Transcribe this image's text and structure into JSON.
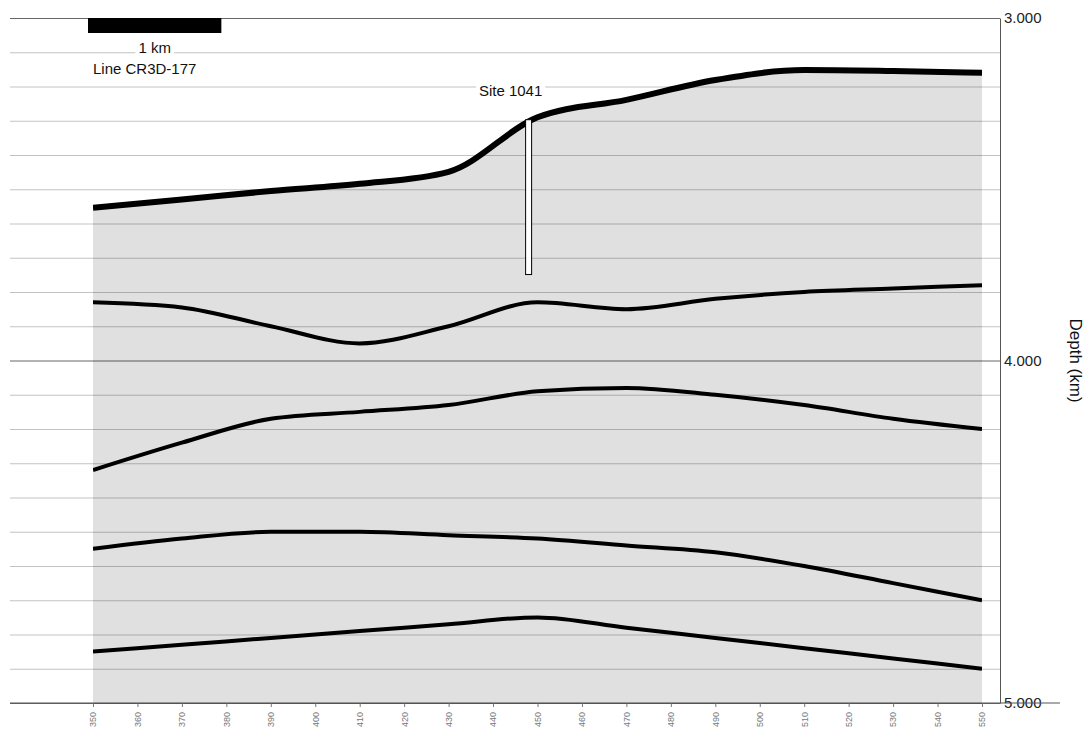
{
  "chart_data": {
    "type": "line",
    "title": "Line CR3D-177",
    "y_label": "Depth (km)",
    "scale_bar": {
      "label": "1 km",
      "length": 30
    },
    "annotations": [
      {
        "text": "Site 1041",
        "x": 448,
        "y": [
          3.297,
          3.749
        ]
      }
    ],
    "x": [
      350,
      370,
      390,
      410,
      430,
      450,
      470,
      490,
      510,
      530,
      550
    ],
    "series": [
      {
        "type": "area",
        "color": "#000000",
        "values": [
          3.554,
          3.53,
          3.505,
          3.484,
          3.449,
          3.29,
          3.239,
          3.181,
          3.152,
          3.155,
          3.16
        ]
      },
      {
        "type": "line",
        "color": "#000000",
        "values": [
          3.83,
          3.845,
          3.9,
          3.95,
          3.9,
          3.83,
          3.85,
          3.82,
          3.8,
          3.79,
          3.78
        ]
      },
      {
        "type": "line",
        "color": "#000000",
        "values": [
          4.32,
          4.24,
          4.17,
          4.15,
          4.13,
          4.09,
          4.08,
          4.1,
          4.13,
          4.17,
          4.2
        ]
      },
      {
        "type": "line",
        "color": "#000000",
        "values": [
          4.55,
          4.52,
          4.5,
          4.5,
          4.51,
          4.52,
          4.54,
          4.56,
          4.6,
          4.65,
          4.7
        ]
      },
      {
        "type": "line",
        "color": "#000000",
        "values": [
          4.85,
          4.83,
          4.81,
          4.79,
          4.77,
          4.75,
          4.78,
          4.81,
          4.84,
          4.87,
          4.9
        ]
      }
    ],
    "xlim": [
      350,
      550
    ],
    "xticks": [
      350,
      360,
      370,
      380,
      390,
      400,
      410,
      420,
      430,
      440,
      450,
      460,
      470,
      480,
      490,
      500,
      510,
      520,
      530,
      540,
      550
    ],
    "ylim": [
      3,
      5
    ],
    "yticks": [
      {
        "value": 3,
        "label": "3.000"
      },
      {
        "value": 4,
        "label": "4.000"
      },
      {
        "value": 5,
        "label": "5.000"
      }
    ],
    "yticks_minor": [
      3.1,
      3.2,
      3.3,
      3.4,
      3.5,
      3.6,
      3.7,
      3.8,
      3.9,
      4.1,
      4.2,
      4.3,
      4.4,
      4.5,
      4.6,
      4.7,
      4.8,
      4.9
    ],
    "grid": true,
    "tick_labels": true
  }
}
